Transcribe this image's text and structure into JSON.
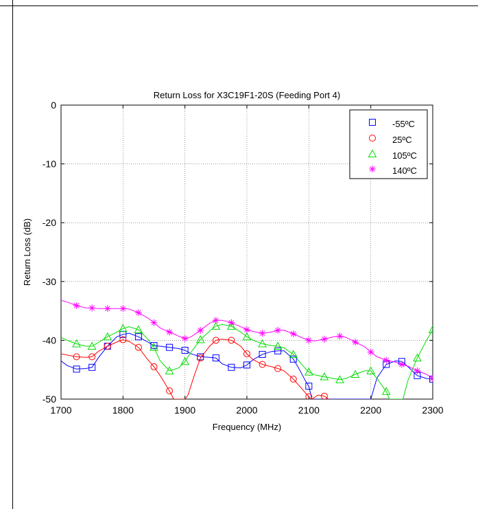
{
  "chart_data": {
    "type": "line",
    "title": "Return Loss for X3C19F1-20S (Feeding Port 4)",
    "xlabel": "Frequency (MHz)",
    "ylabel": "Return Loss (dB)",
    "xlim": [
      1700,
      2300
    ],
    "ylim": [
      -50,
      0
    ],
    "xticks": [
      1700,
      1800,
      1900,
      2000,
      2100,
      2200,
      2300
    ],
    "yticks": [
      -50,
      -40,
      -30,
      -20,
      -10,
      0
    ],
    "grid": true,
    "legend_position": "top-right",
    "series": [
      {
        "name": "-55ºC",
        "color": "#0000ff",
        "marker": "square",
        "x": [
          1700,
          1710,
          1725,
          1740,
          1750,
          1760,
          1775,
          1790,
          1800,
          1810,
          1825,
          1840,
          1850,
          1860,
          1875,
          1890,
          1900,
          1910,
          1925,
          1940,
          1950,
          1960,
          1975,
          1990,
          2000,
          2010,
          2025,
          2040,
          2050,
          2060,
          2075,
          2085,
          2095,
          2100,
          2105,
          2200,
          2210,
          2225,
          2240,
          2250,
          2260,
          2275,
          2290,
          2300
        ],
        "y": [
          -43.5,
          -44.3,
          -44.9,
          -44.8,
          -44.6,
          -43,
          -41,
          -39.4,
          -39,
          -38.8,
          -39.4,
          -40.3,
          -40.9,
          -41,
          -41.2,
          -41.4,
          -41.7,
          -42.3,
          -42.8,
          -42.9,
          -43,
          -44,
          -44.6,
          -44.7,
          -44.2,
          -43.3,
          -42.4,
          -41.9,
          -41.8,
          -41.8,
          -43.2,
          -45,
          -47,
          -47.8,
          -50,
          -50,
          -46.4,
          -44.1,
          -43.5,
          -43.6,
          -44.5,
          -46,
          -46.5,
          -46.6
        ]
      },
      {
        "name": "25ºC",
        "color": "#ff0000",
        "marker": "circle",
        "x": [
          1700,
          1715,
          1725,
          1740,
          1750,
          1760,
          1775,
          1790,
          1800,
          1810,
          1825,
          1840,
          1850,
          1860,
          1875,
          1882,
          1900,
          1905,
          1915,
          1925,
          1940,
          1950,
          1960,
          1975,
          1990,
          2000,
          2010,
          2025,
          2040,
          2050,
          2060,
          2075,
          2090,
          2100,
          2105,
          2115,
          2125,
          2132
        ],
        "y": [
          -42.3,
          -42.6,
          -42.8,
          -42.9,
          -42.8,
          -41.9,
          -41,
          -40.3,
          -39.9,
          -40.2,
          -41.2,
          -43.3,
          -44.5,
          -46,
          -48.6,
          -50,
          -50,
          -49.3,
          -46,
          -43,
          -41,
          -40,
          -39.8,
          -40,
          -41,
          -42.3,
          -43.3,
          -44.1,
          -44.5,
          -44.8,
          -45.2,
          -46.6,
          -48.4,
          -49.6,
          -50,
          -49.3,
          -49.5,
          -50
        ]
      },
      {
        "name": "105ºC",
        "color": "#00dd00",
        "marker": "triangle",
        "x": [
          1700,
          1710,
          1725,
          1740,
          1750,
          1760,
          1775,
          1790,
          1800,
          1810,
          1825,
          1840,
          1850,
          1860,
          1875,
          1890,
          1900,
          1910,
          1925,
          1940,
          1950,
          1960,
          1975,
          1990,
          2000,
          2010,
          2025,
          2040,
          2050,
          2060,
          2075,
          2090,
          2100,
          2110,
          2125,
          2140,
          2150,
          2160,
          2175,
          2190,
          2200,
          2210,
          2225,
          2230,
          2252,
          2260,
          2275,
          2290,
          2300
        ],
        "y": [
          -39.5,
          -40,
          -40.6,
          -41,
          -41,
          -40.4,
          -39.4,
          -38.6,
          -38,
          -37.7,
          -38.2,
          -39.8,
          -41.2,
          -43.5,
          -45.2,
          -44.7,
          -43.6,
          -42,
          -39.9,
          -38.4,
          -37.6,
          -37.3,
          -37.6,
          -38.6,
          -39.4,
          -40,
          -40.6,
          -40.9,
          -41,
          -41.3,
          -42.4,
          -44.3,
          -45.4,
          -45.9,
          -46.2,
          -46.5,
          -46.7,
          -46.5,
          -45.8,
          -45.2,
          -45.2,
          -46.5,
          -48.7,
          -50,
          -50,
          -46.8,
          -43,
          -40,
          -38.2
        ]
      },
      {
        "name": "140ºC",
        "color": "#ff00ff",
        "marker": "star",
        "x": [
          1700,
          1710,
          1725,
          1740,
          1750,
          1760,
          1775,
          1790,
          1800,
          1810,
          1825,
          1840,
          1850,
          1860,
          1875,
          1890,
          1900,
          1910,
          1925,
          1940,
          1950,
          1960,
          1975,
          1990,
          2000,
          2010,
          2025,
          2040,
          2050,
          2060,
          2075,
          2090,
          2100,
          2110,
          2125,
          2140,
          2150,
          2160,
          2175,
          2190,
          2200,
          2210,
          2225,
          2240,
          2250,
          2260,
          2275,
          2290,
          2300
        ],
        "y": [
          -33.2,
          -33.5,
          -34.1,
          -34.5,
          -34.5,
          -34.6,
          -34.6,
          -34.6,
          -34.6,
          -34.7,
          -35.3,
          -36.2,
          -37,
          -37.9,
          -38.6,
          -39.3,
          -39.7,
          -39.4,
          -38.3,
          -37.1,
          -36.6,
          -36.6,
          -37,
          -37.7,
          -38.2,
          -38.5,
          -38.8,
          -38.6,
          -38.3,
          -38.3,
          -38.9,
          -39.6,
          -40,
          -40.1,
          -39.8,
          -39.4,
          -39.3,
          -39.5,
          -40.3,
          -41.1,
          -42,
          -42.8,
          -43.4,
          -43.7,
          -44.1,
          -44.4,
          -45.2,
          -45.8,
          -46.5
        ]
      }
    ]
  }
}
